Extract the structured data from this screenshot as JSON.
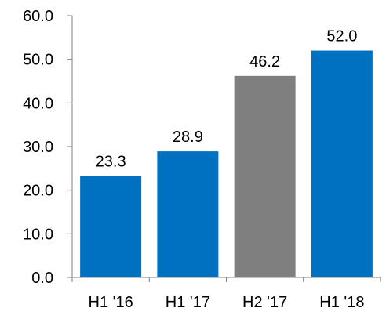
{
  "chart_data": {
    "type": "bar",
    "categories": [
      "H1 '16",
      "H1 '17",
      "H2 '17",
      "H1 '18"
    ],
    "values": [
      23.3,
      28.9,
      46.2,
      52.0
    ],
    "data_labels": [
      "23.3",
      "28.9",
      "46.2",
      "52.0"
    ],
    "y_ticks": [
      "0.0",
      "10.0",
      "20.0",
      "30.0",
      "40.0",
      "50.0",
      "60.0"
    ],
    "ylim": [
      0,
      60
    ],
    "title": "",
    "xlabel": "",
    "ylabel": "",
    "grid": false,
    "bar_colors": [
      "#0070C0",
      "#0070C0",
      "#7F7F7F",
      "#0070C0"
    ],
    "axis_color": "#7F7F7F"
  }
}
